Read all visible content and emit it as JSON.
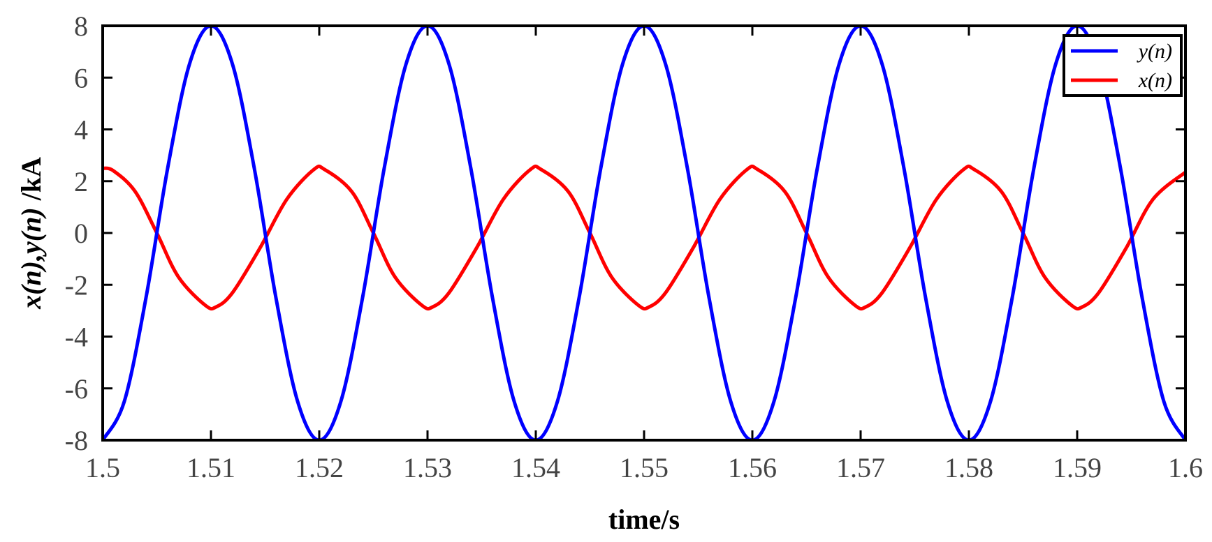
{
  "chart_data": {
    "type": "line",
    "title": "",
    "xlabel": "time/s",
    "ylabel": {
      "parts": [
        {
          "text": "x(",
          "italic": true
        },
        {
          "text": "n",
          "italic": true
        },
        {
          "text": "),",
          "italic": true
        },
        {
          "text": "y(",
          "italic": true
        },
        {
          "text": "n",
          "italic": true
        },
        {
          "text": ")",
          "italic": true
        },
        {
          "text": " /kA",
          "italic": false
        }
      ]
    },
    "xlim": [
      1.5,
      1.6
    ],
    "ylim": [
      -8,
      8
    ],
    "xticks": [
      1.5,
      1.51,
      1.52,
      1.53,
      1.54,
      1.55,
      1.56,
      1.57,
      1.58,
      1.59,
      1.6
    ],
    "xtick_labels": [
      "1.5",
      "1.51",
      "1.52",
      "1.53",
      "1.54",
      "1.55",
      "1.56",
      "1.57",
      "1.58",
      "1.59",
      "1.6"
    ],
    "yticks": [
      -8,
      -6,
      -4,
      -2,
      0,
      2,
      4,
      6,
      8
    ],
    "ytick_labels": [
      "-8",
      "-6",
      "-4",
      "-2",
      "0",
      "2",
      "4",
      "6",
      "8"
    ],
    "grid": false,
    "legend_position": "top-right",
    "series": [
      {
        "name": "y(n)",
        "color": "#0000ff",
        "x": [
          1.5,
          1.502,
          1.504,
          1.506,
          1.508,
          1.51,
          1.512,
          1.514,
          1.516,
          1.518,
          1.52,
          1.522,
          1.524,
          1.526,
          1.528,
          1.53,
          1.532,
          1.534,
          1.536,
          1.538,
          1.54,
          1.542,
          1.544,
          1.546,
          1.548,
          1.55,
          1.552,
          1.554,
          1.556,
          1.558,
          1.56,
          1.562,
          1.564,
          1.566,
          1.568,
          1.57,
          1.572,
          1.574,
          1.576,
          1.578,
          1.58,
          1.582,
          1.584,
          1.586,
          1.588,
          1.59,
          1.592,
          1.594,
          1.596,
          1.598,
          1.6
        ],
        "y": [
          -8,
          -6.5,
          -2.5,
          2.5,
          6.5,
          8,
          6.5,
          2.5,
          -2.5,
          -6.5,
          -8,
          -6.5,
          -2.5,
          2.5,
          6.5,
          8,
          6.5,
          2.5,
          -2.5,
          -6.5,
          -8,
          -6.5,
          -2.5,
          2.5,
          6.5,
          8,
          6.5,
          2.5,
          -2.5,
          -6.5,
          -8,
          -6.5,
          -2.5,
          2.5,
          6.5,
          8,
          6.5,
          2.5,
          -2.5,
          -6.5,
          -8,
          -6.5,
          -2.5,
          2.5,
          6.5,
          8,
          6.5,
          2.5,
          -2.5,
          -6.5,
          -8
        ]
      },
      {
        "name": "x(n)",
        "color": "#ff0000",
        "x": [
          1.5,
          1.501,
          1.503,
          1.505,
          1.507,
          1.5095,
          1.5105,
          1.512,
          1.5145,
          1.517,
          1.5195,
          1.5205,
          1.523,
          1.525,
          1.527,
          1.5295,
          1.5305,
          1.532,
          1.5345,
          1.537,
          1.5395,
          1.5405,
          1.543,
          1.545,
          1.547,
          1.5495,
          1.5505,
          1.552,
          1.5545,
          1.557,
          1.5595,
          1.5605,
          1.563,
          1.565,
          1.567,
          1.5695,
          1.5705,
          1.572,
          1.5745,
          1.577,
          1.5795,
          1.5805,
          1.583,
          1.585,
          1.587,
          1.5895,
          1.5905,
          1.592,
          1.5945,
          1.597,
          1.6
        ],
        "y": [
          2.5,
          2.4,
          1.6,
          0,
          -1.7,
          -2.8,
          -2.85,
          -2.3,
          -0.6,
          1.3,
          2.45,
          2.45,
          1.6,
          0,
          -1.7,
          -2.8,
          -2.85,
          -2.3,
          -0.6,
          1.3,
          2.45,
          2.45,
          1.6,
          0,
          -1.7,
          -2.8,
          -2.85,
          -2.3,
          -0.6,
          1.3,
          2.45,
          2.45,
          1.6,
          0,
          -1.7,
          -2.8,
          -2.85,
          -2.3,
          -0.6,
          1.3,
          2.45,
          2.45,
          1.6,
          0,
          -1.7,
          -2.8,
          -2.85,
          -2.3,
          -0.6,
          1.3,
          2.35
        ]
      }
    ]
  }
}
